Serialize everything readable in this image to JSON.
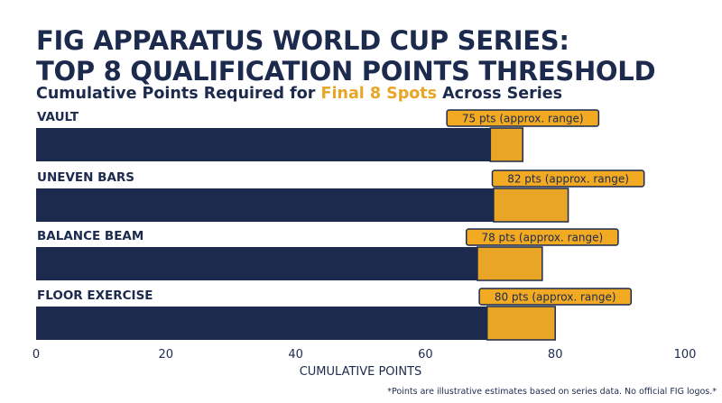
{
  "header": {
    "title_line1": "FIG APPARATUS WORLD CUP SERIES:",
    "title_line2": "TOP 8 QUALIFICATION POINTS THRESHOLD",
    "subtitle_pre": "Cumulative Points Required for ",
    "subtitle_highlight": "Final 8 Spots",
    "subtitle_post": " Across Series"
  },
  "footnote": "*Points are illustrative estimates based on series data. No official FIG logos.*",
  "colors": {
    "navy": "#1c2a4d",
    "gold": "#e8a526",
    "label_bg": "#f2aa22"
  },
  "chart_data": {
    "type": "bar",
    "orientation": "horizontal",
    "xlabel": "CUMULATIVE POINTS",
    "xlim": [
      0,
      100
    ],
    "xticks": [
      "0",
      "20",
      "40",
      "60",
      "80",
      "100"
    ],
    "grid": false,
    "categories": [
      "VAULT",
      "UNEVEN BARS",
      "BALANCE BEAM",
      "FLOOR EXERCISE"
    ],
    "series": [
      {
        "values": [
          70,
          70.5,
          68,
          69.5
        ]
      },
      {
        "values": [
          5,
          11.5,
          10,
          10.5
        ]
      }
    ],
    "totals": [
      75,
      82,
      78,
      80
    ],
    "data_labels": [
      "75 pts (approx. range)",
      "82 pts (approx. range)",
      "78 pts (approx. range)",
      "80 pts (approx. range)"
    ]
  }
}
